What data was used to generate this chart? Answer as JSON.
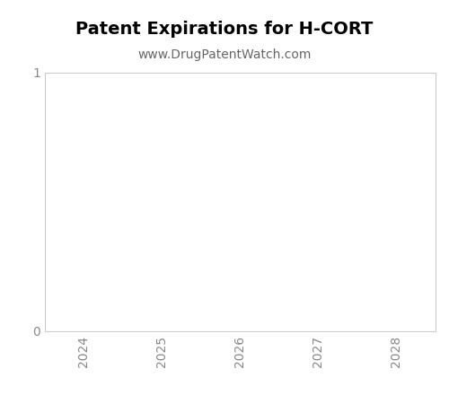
{
  "title": "Patent Expirations for H-CORT",
  "subtitle": "www.DrugPatentWatch.com",
  "x_ticks": [
    2024,
    2025,
    2026,
    2027,
    2028
  ],
  "y_lim": [
    0,
    1
  ],
  "y_ticks": [
    0,
    1
  ],
  "background_color": "#ffffff",
  "plot_bg_color": "#ffffff",
  "spine_color": "#cccccc",
  "title_fontsize": 14,
  "subtitle_fontsize": 10,
  "tick_fontsize": 10,
  "tick_color": "#888888",
  "subtitle_color": "#666666"
}
